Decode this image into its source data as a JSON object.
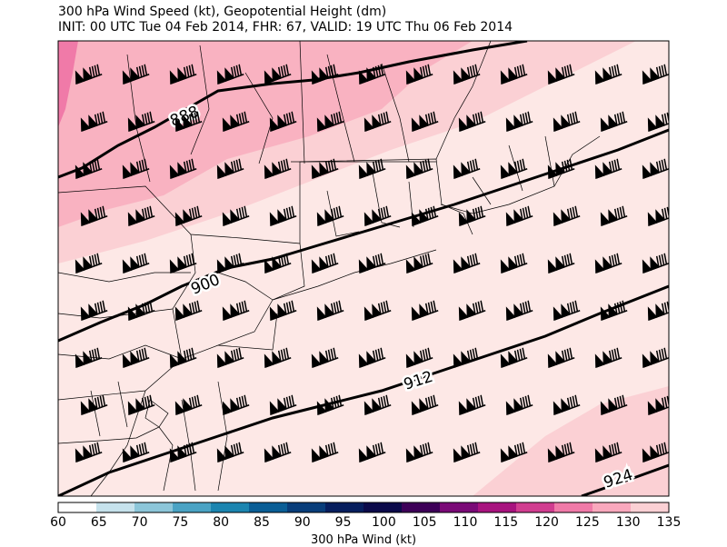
{
  "title": {
    "line1": "300 hPa Wind Speed (kt), Geopotential Height (dm)",
    "line2": "INIT: 00 UTC Tue 04 Feb 2014, FHR: 67, VALID: 19 UTC Thu 06 Feb 2014"
  },
  "contours": {
    "labels": [
      "888",
      "900",
      "912",
      "924"
    ]
  },
  "colorbar": {
    "label": "300 hPa Wind (kt)",
    "ticks": [
      "60",
      "65",
      "70",
      "75",
      "80",
      "85",
      "90",
      "95",
      "100",
      "105",
      "110",
      "115",
      "120",
      "125",
      "130",
      "135"
    ],
    "colors": [
      "#ffffff",
      "#c6e2ec",
      "#8cc6d9",
      "#4aa3c4",
      "#1b85b0",
      "#0a5e96",
      "#083d7a",
      "#061e5e",
      "#0b0a4a",
      "#3d0058",
      "#7a0a77",
      "#a8137f",
      "#d13d90",
      "#f07aa8",
      "#f9a8bd",
      "#fbd0d4"
    ]
  },
  "map_colors": {
    "fill_lowest": "#fde8e6",
    "fill_low": "#fbd0d4",
    "fill_mid": "#f9b2c1",
    "fill_high": "#f07aa8",
    "contour": "#000000",
    "barb": "#000000",
    "boundary": "#000000"
  },
  "barb_icon": "wind-barb-icon"
}
